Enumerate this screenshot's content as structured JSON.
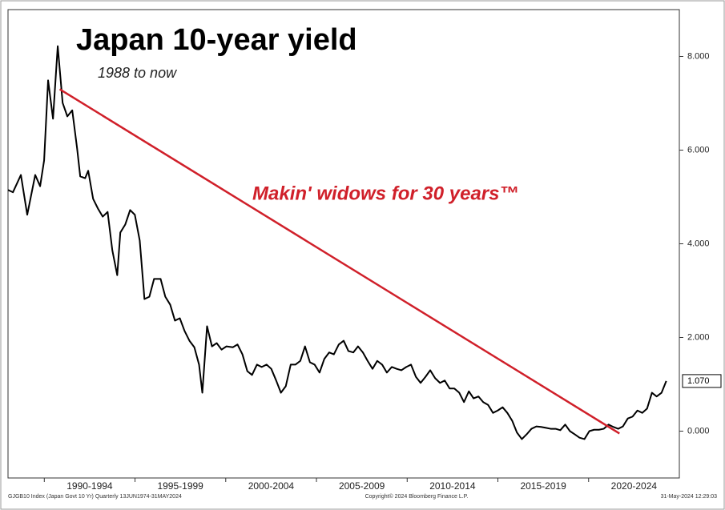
{
  "chart_data": {
    "type": "line",
    "title": "Japan 10-year yield",
    "subtitle": "1988 to now",
    "annotation": "Makin' widows for 30 years™",
    "trend_line": {
      "x": [
        1990.85,
        2021.7
      ],
      "values": [
        7.3,
        -0.05
      ],
      "color": "#d0202a"
    },
    "last_value": {
      "value": 1.07,
      "label": "1.070"
    },
    "footer_left": "GJGB10 Index (Japan Govt 10 Yr) Quarterly 13JUN1974-31MAY2024",
    "footer_center": "Copyright© 2024 Bloomberg Finance L.P.",
    "footer_right": "31-May-2024 12:29:03",
    "xlim": [
      1988,
      2025
    ],
    "xticks": [
      {
        "value": 1990,
        "label": "1990-1994"
      },
      {
        "value": 1995,
        "label": "1995-1999"
      },
      {
        "value": 2000,
        "label": "2000-2004"
      },
      {
        "value": 2005,
        "label": "2005-2009"
      },
      {
        "value": 2010,
        "label": "2010-2014"
      },
      {
        "value": 2015,
        "label": "2015-2019"
      },
      {
        "value": 2020,
        "label": "2020-2024"
      }
    ],
    "ylim": [
      -1,
      9
    ],
    "yticks": [
      {
        "value": 0,
        "label": "0.000"
      },
      {
        "value": 2,
        "label": "2.000"
      },
      {
        "value": 4,
        "label": "4.000"
      },
      {
        "value": 6,
        "label": "6.000"
      },
      {
        "value": 8,
        "label": "8.000"
      }
    ],
    "series": [
      {
        "name": "GJGB10 Index",
        "color": "#000000",
        "x": [
          1988.0,
          1988.27,
          1988.71,
          1989.06,
          1989.5,
          1989.77,
          1989.99,
          1990.21,
          1990.48,
          1990.74,
          1991.01,
          1991.27,
          1991.54,
          1991.81,
          1991.98,
          1992.25,
          1992.42,
          1992.69,
          1992.96,
          1993.22,
          1993.49,
          1993.75,
          1994.02,
          1994.19,
          1994.46,
          1994.73,
          1994.99,
          1995.26,
          1995.52,
          1995.79,
          1996.05,
          1996.41,
          1996.67,
          1996.94,
          1997.2,
          1997.47,
          1997.73,
          1998.0,
          1998.27,
          1998.53,
          1998.71,
          1998.97,
          1999.24,
          1999.5,
          1999.77,
          2000.04,
          2000.39,
          2000.65,
          2000.92,
          2001.19,
          2001.45,
          2001.72,
          2001.98,
          2002.25,
          2002.51,
          2002.78,
          2003.04,
          2003.31,
          2003.58,
          2003.84,
          2004.11,
          2004.37,
          2004.64,
          2004.9,
          2005.17,
          2005.43,
          2005.7,
          2005.96,
          2006.23,
          2006.5,
          2006.76,
          2007.03,
          2007.29,
          2007.56,
          2007.82,
          2008.09,
          2008.35,
          2008.62,
          2008.88,
          2009.15,
          2009.42,
          2009.68,
          2009.95,
          2010.21,
          2010.48,
          2010.74,
          2011.01,
          2011.27,
          2011.54,
          2011.81,
          2012.07,
          2012.34,
          2012.6,
          2012.87,
          2013.13,
          2013.4,
          2013.66,
          2013.93,
          2014.19,
          2014.46,
          2014.73,
          2014.99,
          2015.26,
          2015.52,
          2015.79,
          2016.05,
          2016.32,
          2016.58,
          2016.85,
          2017.12,
          2017.38,
          2017.65,
          2017.91,
          2018.18,
          2018.44,
          2018.71,
          2018.97,
          2019.24,
          2019.5,
          2019.77,
          2020.04,
          2020.3,
          2020.57,
          2020.83,
          2021.1,
          2021.36,
          2021.63,
          2021.89,
          2022.16,
          2022.42,
          2022.69,
          2022.96,
          2023.22,
          2023.49,
          2023.75,
          2024.02,
          2024.28
        ],
        "values": [
          5.15,
          5.1,
          5.47,
          4.62,
          5.47,
          5.23,
          5.78,
          7.49,
          6.67,
          8.22,
          7.01,
          6.72,
          6.85,
          6.03,
          5.44,
          5.4,
          5.56,
          4.96,
          4.75,
          4.58,
          4.68,
          3.86,
          3.33,
          4.24,
          4.41,
          4.72,
          4.62,
          4.07,
          2.82,
          2.87,
          3.25,
          3.25,
          2.87,
          2.7,
          2.36,
          2.41,
          2.14,
          1.93,
          1.79,
          1.42,
          0.82,
          2.24,
          1.81,
          1.88,
          1.74,
          1.81,
          1.79,
          1.85,
          1.64,
          1.28,
          1.2,
          1.42,
          1.37,
          1.42,
          1.33,
          1.08,
          0.82,
          0.96,
          1.42,
          1.42,
          1.5,
          1.81,
          1.47,
          1.42,
          1.25,
          1.54,
          1.68,
          1.64,
          1.85,
          1.93,
          1.71,
          1.68,
          1.81,
          1.68,
          1.5,
          1.33,
          1.5,
          1.42,
          1.25,
          1.37,
          1.33,
          1.3,
          1.37,
          1.42,
          1.16,
          1.03,
          1.16,
          1.3,
          1.13,
          1.03,
          1.08,
          0.91,
          0.91,
          0.82,
          0.62,
          0.85,
          0.7,
          0.74,
          0.62,
          0.56,
          0.39,
          0.44,
          0.51,
          0.39,
          0.22,
          -0.03,
          -0.17,
          -0.07,
          0.05,
          0.1,
          0.09,
          0.07,
          0.05,
          0.05,
          0.02,
          0.14,
          0.0,
          -0.07,
          -0.14,
          -0.17,
          0.0,
          0.03,
          0.03,
          0.05,
          0.14,
          0.09,
          0.05,
          0.1,
          0.27,
          0.31,
          0.44,
          0.39,
          0.48,
          0.82,
          0.74,
          0.82,
          1.07
        ]
      }
    ]
  }
}
